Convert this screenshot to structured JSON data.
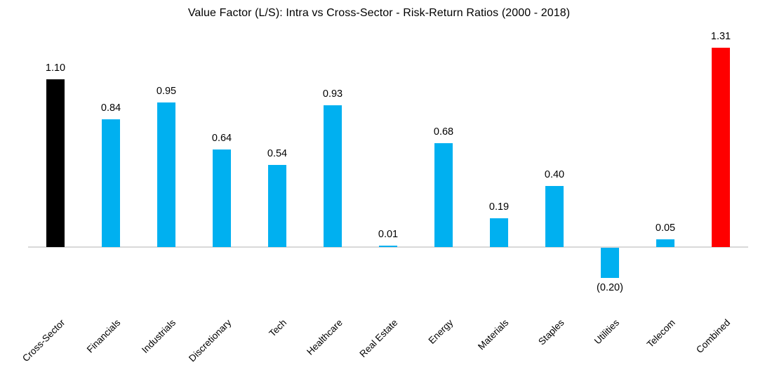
{
  "chart_data": {
    "type": "bar",
    "title": "Value Factor (L/S): Intra vs Cross-Sector - Risk-Return Ratios (2000 - 2018)",
    "categories": [
      "Cross-Sector",
      "Financials",
      "Industrials",
      "Discretionary",
      "Tech",
      "Healthcare",
      "Real Estate",
      "Energy",
      "Materials",
      "Staples",
      "Utilities",
      "Telecom",
      "Combined"
    ],
    "values": [
      1.1,
      0.84,
      0.95,
      0.64,
      0.54,
      0.93,
      0.01,
      0.68,
      0.19,
      0.4,
      -0.2,
      0.05,
      1.31
    ],
    "value_labels": [
      "1.10",
      "0.84",
      "0.95",
      "0.64",
      "0.54",
      "0.93",
      "0.01",
      "0.68",
      "0.19",
      "0.40",
      "(0.20)",
      "0.05",
      "1.31"
    ],
    "bar_colors": [
      "#000000",
      "#00B0F0",
      "#00B0F0",
      "#00B0F0",
      "#00B0F0",
      "#00B0F0",
      "#00B0F0",
      "#00B0F0",
      "#00B0F0",
      "#00B0F0",
      "#00B0F0",
      "#00B0F0",
      "#FF0000"
    ],
    "colors": {
      "cross_sector_bar": "#000000",
      "intra_sector_bar": "#00B0F0",
      "combined_bar": "#FF0000",
      "axis_line": "#D9D9D9",
      "text": "#000000"
    },
    "xlabel": "",
    "ylabel": "",
    "ylim": [
      -0.35,
      1.45
    ],
    "grid": false,
    "legend": "none",
    "y_axis_visible": false,
    "x_tick_rotation_deg": 45,
    "data_labels": "outside-end"
  }
}
